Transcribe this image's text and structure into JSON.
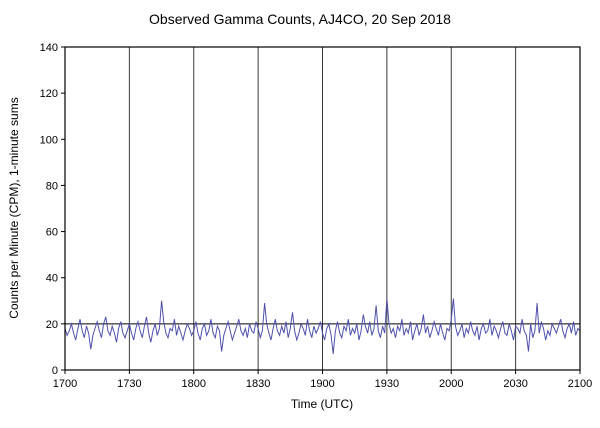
{
  "chart_data": {
    "type": "line",
    "title": "Observed Gamma Counts, AJ4CO, 20 Sep 2018",
    "xlabel": "Time (UTC)",
    "ylabel": "Counts per Minute (CPM), 1-minute sums",
    "xtick_labels": [
      "1700",
      "1730",
      "1800",
      "1830",
      "1900",
      "1930",
      "2000",
      "2030",
      "2100"
    ],
    "xtick_minutes": [
      0,
      30,
      60,
      90,
      120,
      150,
      180,
      210,
      240
    ],
    "x_range_minutes": [
      0,
      240
    ],
    "x_step_minutes": 1,
    "ylim": [
      0,
      140
    ],
    "ytick_values": [
      0,
      20,
      40,
      60,
      80,
      100,
      120,
      140
    ],
    "grid": "vertical lines at 30-min ticks; horizontal reference line at y=20",
    "legend": "none",
    "line_color": "#4f51ad",
    "frame_color": "#000000",
    "grid_color": "#3a3a3a",
    "reference_line_y": 20,
    "series_name": "Observed gamma counts, 1-minute sums",
    "values": [
      18,
      15,
      17,
      20,
      16,
      13,
      18,
      22,
      17,
      14,
      19,
      16,
      9,
      15,
      18,
      21,
      17,
      14,
      20,
      23,
      17,
      15,
      19,
      16,
      12,
      18,
      21,
      16,
      14,
      17,
      20,
      16,
      13,
      18,
      21,
      17,
      14,
      19,
      23,
      16,
      12,
      17,
      20,
      15,
      18,
      30,
      21,
      16,
      14,
      18,
      17,
      22,
      15,
      19,
      16,
      13,
      17,
      20,
      18,
      15,
      17,
      21,
      16,
      13,
      18,
      20,
      15,
      17,
      22,
      16,
      14,
      19,
      17,
      8,
      15,
      18,
      21,
      17,
      13,
      16,
      19,
      22,
      17,
      15,
      18,
      14,
      20,
      17,
      16,
      21,
      18,
      14,
      17,
      29,
      20,
      16,
      13,
      18,
      22,
      17,
      15,
      19,
      16,
      21,
      14,
      18,
      25,
      17,
      13,
      16,
      20,
      18,
      15,
      22,
      17,
      14,
      19,
      16,
      18,
      21,
      16,
      13,
      18,
      20,
      15,
      7,
      17,
      21,
      16,
      14,
      19,
      17,
      22,
      15,
      18,
      16,
      20,
      13,
      17,
      24,
      19,
      16,
      21,
      15,
      18,
      28,
      17,
      14,
      19,
      16,
      31,
      20,
      16,
      18,
      14,
      19,
      17,
      22,
      15,
      18,
      16,
      21,
      13,
      17,
      20,
      15,
      18,
      24,
      16,
      19,
      14,
      17,
      21,
      18,
      15,
      20,
      16,
      13,
      18,
      17,
      22,
      31,
      19,
      15,
      17,
      20,
      14,
      18,
      16,
      21,
      17,
      15,
      19,
      13,
      18,
      20,
      16,
      17,
      22,
      15,
      19,
      17,
      14,
      18,
      21,
      16,
      15,
      20,
      17,
      13,
      19,
      18,
      16,
      22,
      17,
      15,
      8,
      20,
      14,
      17,
      29,
      16,
      21,
      18,
      13,
      17,
      15,
      20,
      18,
      16,
      19,
      22,
      17,
      14,
      18,
      20,
      16,
      21,
      15,
      18,
      17
    ]
  }
}
